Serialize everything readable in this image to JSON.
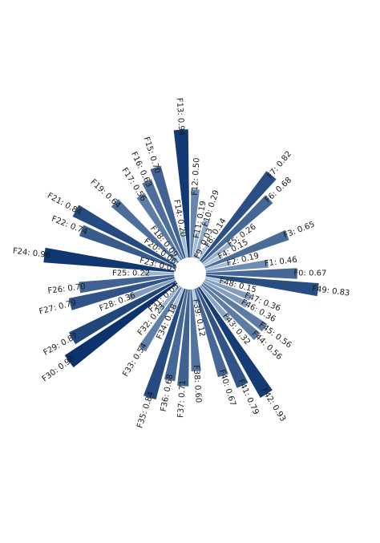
{
  "chart_data": {
    "type": "bar",
    "layout": "radial",
    "colormap": "Blues",
    "color_range": [
      "#c6dbef",
      "#08306b"
    ],
    "categories": [
      "F0",
      "F1",
      "F2",
      "F3",
      "F4",
      "F5",
      "F6",
      "F7",
      "F8",
      "F9",
      "F10",
      "F11",
      "F12",
      "F13",
      "F14",
      "F15",
      "F16",
      "F17",
      "F18",
      "F19",
      "F20",
      "F21",
      "F22",
      "F23",
      "F24",
      "F25",
      "F26",
      "F27",
      "F28",
      "F29",
      "F30",
      "F31",
      "F32",
      "F33",
      "F34",
      "F35",
      "F36",
      "F37",
      "F38",
      "F39",
      "F40",
      "F41",
      "F42",
      "F43",
      "F44",
      "F45",
      "F46",
      "F47",
      "F48",
      "F49"
    ],
    "values": [
      0.67,
      0.46,
      0.19,
      0.65,
      0.15,
      0.26,
      0.68,
      0.82,
      0.14,
      0.03,
      0.29,
      0.19,
      0.5,
      0.94,
      0.2,
      0.7,
      0.63,
      0.56,
      0.09,
      0.64,
      0.06,
      0.84,
      0.74,
      0.03,
      0.96,
      0.22,
      0.7,
      0.79,
      0.36,
      0.87,
      0.98,
      0.05,
      0.23,
      0.54,
      0.18,
      0.84,
      0.68,
      0.71,
      0.6,
      0.12,
      0.67,
      0.79,
      0.93,
      0.32,
      0.56,
      0.56,
      0.36,
      0.36,
      0.15,
      0.83
    ],
    "labels": [
      "F0: 0.67",
      "F1: 0.46",
      "F2: 0.19",
      "F3: 0.65",
      "F4: 0.15",
      "F5: 0.26",
      "F6: 0.68",
      "F7: 0.82",
      "F8: 0.14",
      "F9: 0.03",
      "F10: 0.29",
      "F11: 0.19",
      "F12: 0.50",
      "F13: 0.94",
      "F14: 0.20",
      "F15: 0.70",
      "F16: 0.63",
      "F17: 0.56",
      "F18: 0.09",
      "F19: 0.64",
      "F20: 0.06",
      "F21: 0.84",
      "F22: 0.74",
      "F23: 0.03",
      "F24: 0.96",
      "F25: 0.22",
      "F26: 0.70",
      "F27: 0.79",
      "F28: 0.36",
      "F29: 0.87",
      "F30: 0.98",
      "F31: 0.05",
      "F32: 0.23",
      "F33: 0.54",
      "F34: 0.18",
      "F35: 0.84",
      "F36: 0.68",
      "F37: 0.71",
      "F38: 0.60",
      "F39: 0.12",
      "F40: 0.67",
      "F41: 0.79",
      "F42: 0.93",
      "F43: 0.32",
      "F44: 0.56",
      "F45: 0.56",
      "F46: 0.36",
      "F47: 0.36",
      "F48: 0.15",
      "F49: 0.83"
    ],
    "ylim": [
      0,
      1
    ],
    "grid": false,
    "legend": "none"
  }
}
